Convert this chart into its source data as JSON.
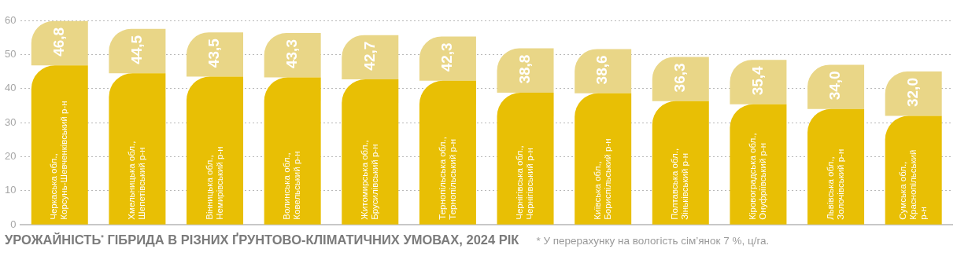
{
  "chart_data": {
    "type": "bar",
    "stacked": true,
    "title": "УРОЖАЙНІСТЬ$^{*}$ ГІБРИДА В РІЗНИХ ҐРУНТОВО-КЛІМАТИЧНИХ УМОВАХ, 2024 РІК",
    "annotations": [
      "* У перерахунку на вологість сім’янок 7 %, ц/га."
    ],
    "categories": [
      "Черкаська обл., Корсунь-Шевченківський р-н",
      "Хмельницька обл., Шепетівський р-н",
      "Вінницька обл., Немирівський р-н",
      "Волинська обл., Ковельський р-н",
      "Житомирська обл., Брусилівський р-н",
      "Тернопільська обл., Тернопільський р-н",
      "Чернігівська обл., Чернігівський р-н",
      "Київська обл., Бориспільський р-н",
      "Полтавська обл., Зіньківський р-н",
      "Кіровоградська обл., Онуфріївський р-н",
      "Львівська обл., Золочівський р-н",
      "Сумська обл., Краснопільський р-н"
    ],
    "series": [
      {
        "color": "#e8bf05",
        "values": [
          46.8,
          44.5,
          43.5,
          43.3,
          42.7,
          42.3,
          38.8,
          38.6,
          36.3,
          35.4,
          34.0,
          32.0
        ],
        "value_labels": [
          "46,8",
          "44,5",
          "43,5",
          "43,3",
          "42,7",
          "42,3",
          "38,8",
          "38,6",
          "36,3",
          "35,4",
          "34,0",
          "32,0"
        ]
      },
      {
        "color": "#e9d687",
        "values": [
          13,
          13,
          13,
          13,
          13,
          13,
          13,
          13,
          13,
          13,
          13,
          13
        ]
      }
    ],
    "ylim": [
      0,
      60
    ],
    "yticks": [
      0,
      10,
      20,
      30,
      40,
      50,
      60
    ],
    "grid": "y",
    "legend": false
  }
}
